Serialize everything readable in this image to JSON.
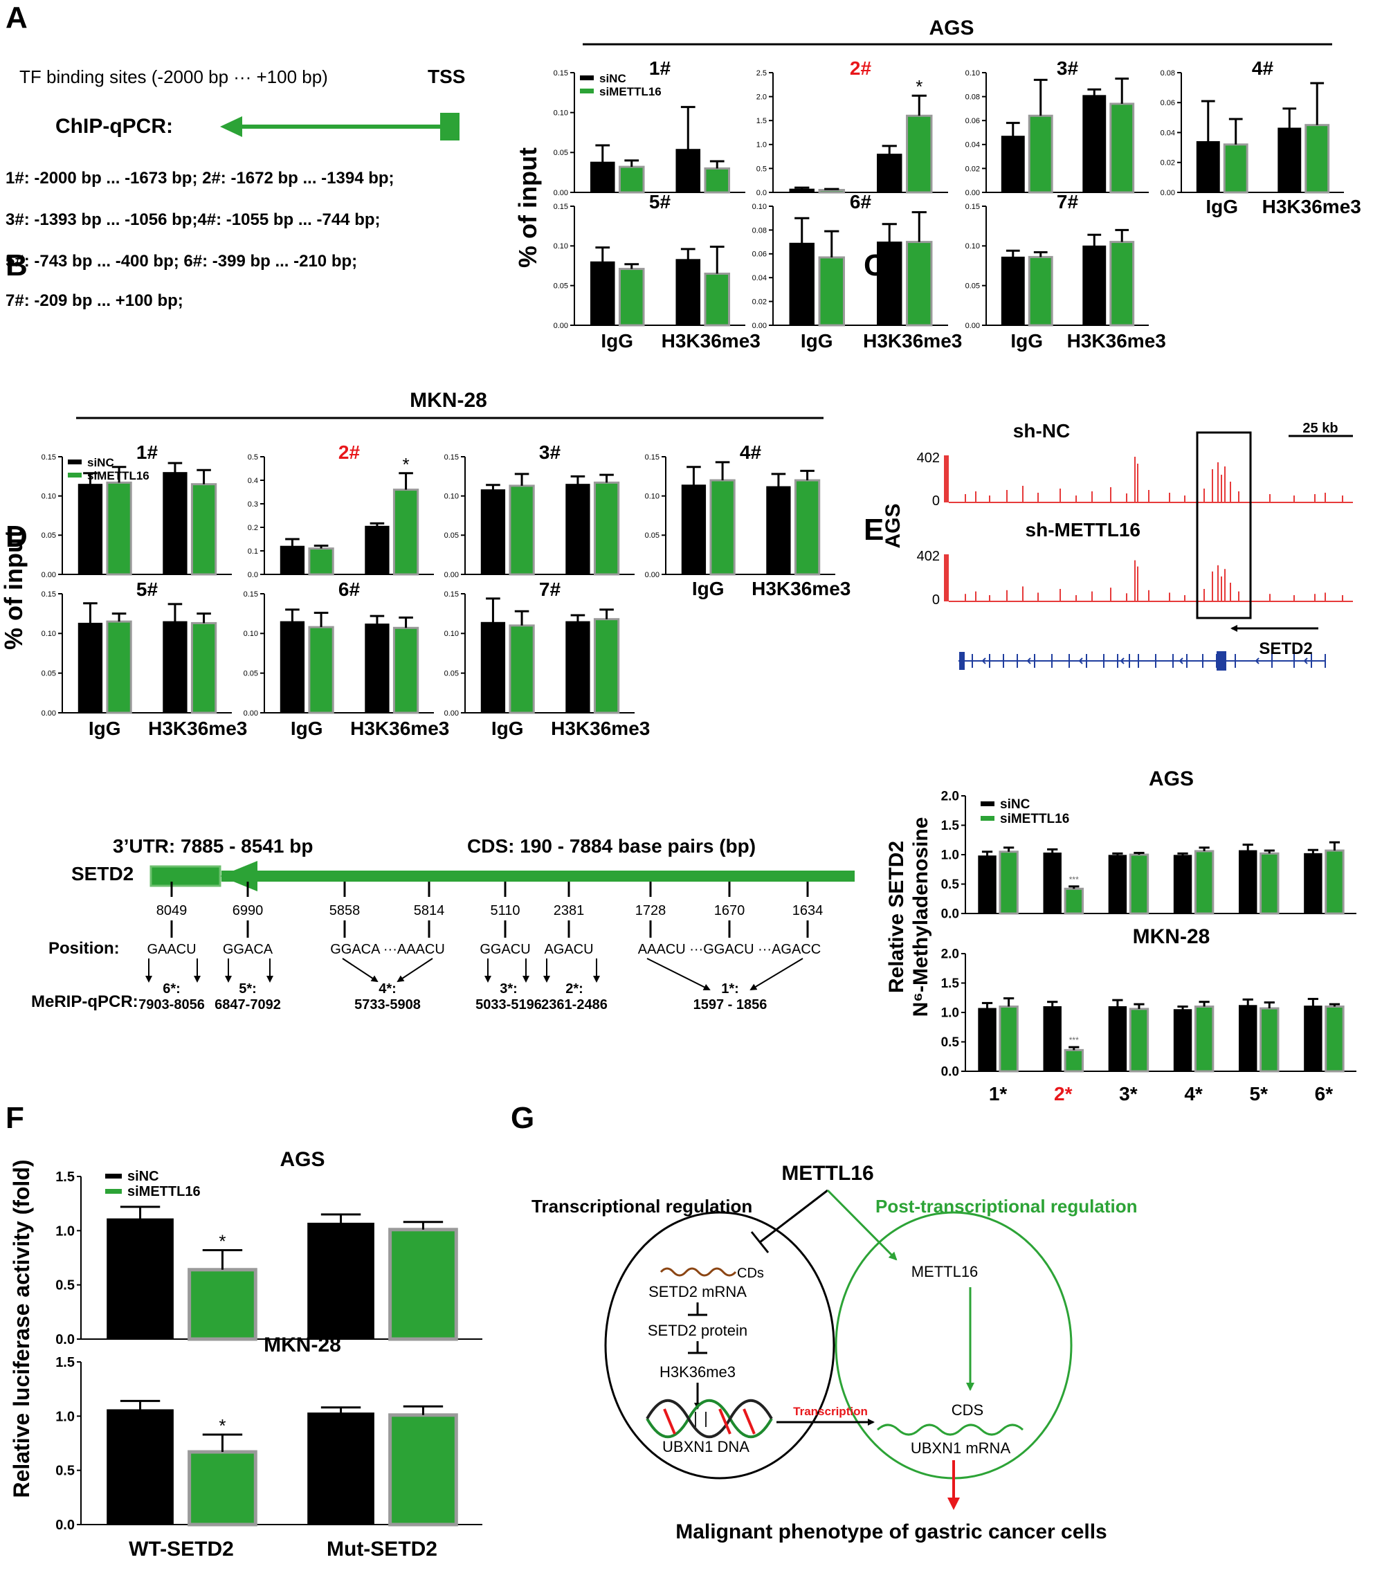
{
  "colors": {
    "black": "#000000",
    "green": "#2ca336",
    "green_border": "#9a9a9a",
    "red": "#e8171b",
    "blue": "#1f3d9e",
    "track_red": "#e63a3a"
  },
  "panel_letters": [
    "A",
    "B",
    "C",
    "D",
    "E",
    "F",
    "G"
  ],
  "legend": {
    "siNC": "siNC",
    "siMETTL16": "siMETTL16"
  },
  "common": {
    "percent_input": "% of input",
    "igg": "IgG",
    "h3k36me3": "H3K36me3"
  },
  "panelA": {
    "cell_line": "AGS",
    "tf_label": "TF binding sites (-2000 bp ··· +100 bp)",
    "tss": "TSS",
    "chip_label": "ChIP-qPCR:",
    "regions": [
      "1#: -2000 bp ... -1673 bp; 2#: -1672 bp ...  -1394 bp;",
      "3#: -1393 bp ...  -1056 bp;4#: -1055 bp ...  -744 bp;",
      "5#: -743 bp  ...  -400 bp;   6#:  -399 bp ...  -210 bp;",
      "7#: -209 bp  ...   +100 bp;"
    ]
  },
  "panelB": {
    "cell_line": "MKN-28"
  },
  "panelC": {
    "scale": "25 kb",
    "side_label": "AGS",
    "track1": "sh-NC",
    "track2": "sh-METTL16",
    "ymax": "402",
    "ymin": "0",
    "gene": "SETD2"
  },
  "panelD": {
    "utr": "3’UTR: 7885 - 8541 bp",
    "cds": "CDS: 190 - 7884 base pairs (bp)",
    "gene": "SETD2",
    "position_label": "Position:",
    "merip_label": "MeRIP-qPCR:",
    "positions": [
      "8049",
      "6990",
      "5858",
      "5814",
      "5110",
      "2381",
      "1728",
      "1670",
      "1634"
    ],
    "motifs": [
      "GAACU",
      "GGACA",
      "GGACA ···AAACU",
      "GGACU",
      "AGACU",
      "AAACU ···GGACU ···AGACC"
    ],
    "regions": [
      {
        "name": "6*:",
        "range": "7903-8056"
      },
      {
        "name": "5*:",
        "range": "6847-7092"
      },
      {
        "name": "4*:",
        "range": "5733-5908"
      },
      {
        "name": "3*:",
        "range": "5033-5196"
      },
      {
        "name": "2*:",
        "range": "2361-2486"
      },
      {
        "name": "1*:",
        "range": "1597 - 1856"
      }
    ]
  },
  "panelE": {
    "ylabel1": "Relative SETD2",
    "ylabel2": "N⁶-Methyladenosine"
  },
  "panelF": {
    "ylabel": "Relative luciferase activity (fold)"
  },
  "panelG": {
    "top": "METTL16",
    "left_title": "Transcriptional regulation",
    "right_title": "Post-transcriptional regulation",
    "cds_left": "CDs",
    "setd2_mrna": "SETD2 mRNA",
    "setd2_protein": "SETD2 protein",
    "h3k36me3": "H3K36me3",
    "ubxn1_dna": "UBXN1 DNA",
    "transcription": "Transcription",
    "mettl16_inner": "METTL16",
    "cds_right": "CDS",
    "ubxn1_mrna": "UBXN1 mRNA",
    "bottom": "Malignant phenotype of gastric cancer cells"
  },
  "chart_data": [
    {
      "type": "bar",
      "panel": "A",
      "title": "1#",
      "categories": [
        "IgG",
        "H3K36me3"
      ],
      "ylim": [
        0,
        0.15
      ],
      "yticks": [
        "0.00",
        "0.05",
        "0.10",
        "0.15"
      ],
      "series": [
        {
          "name": "siNC",
          "values": [
            0.038,
            0.054
          ],
          "errors": [
            0.021,
            0.053
          ]
        },
        {
          "name": "siMETTL16",
          "values": [
            0.032,
            0.03
          ],
          "errors": [
            0.008,
            0.009
          ]
        }
      ],
      "legend": "top-left"
    },
    {
      "type": "bar",
      "panel": "A",
      "title": "2#",
      "title_color": "red",
      "categories": [
        "IgG",
        "H3K36me3"
      ],
      "ylim": [
        0,
        2.5
      ],
      "yticks": [
        "0.0",
        "0.5",
        "1.0",
        "1.5",
        "2.0",
        "2.5"
      ],
      "series": [
        {
          "name": "siNC",
          "values": [
            0.07,
            0.8
          ],
          "errors": [
            0.03,
            0.17
          ]
        },
        {
          "name": "siMETTL16",
          "values": [
            0.05,
            1.6
          ],
          "errors": [
            0.02,
            0.42
          ]
        }
      ],
      "annotations": [
        {
          "category": "H3K36me3",
          "text": "*"
        }
      ]
    },
    {
      "type": "bar",
      "panel": "A",
      "title": "3#",
      "categories": [
        "IgG",
        "H3K36me3"
      ],
      "ylim": [
        0,
        0.1
      ],
      "yticks": [
        "0.00",
        "0.02",
        "0.04",
        "0.06",
        "0.08",
        "0.10"
      ],
      "series": [
        {
          "name": "siNC",
          "values": [
            0.047,
            0.081
          ],
          "errors": [
            0.011,
            0.005
          ]
        },
        {
          "name": "siMETTL16",
          "values": [
            0.064,
            0.074
          ],
          "errors": [
            0.03,
            0.021
          ]
        }
      ]
    },
    {
      "type": "bar",
      "panel": "A",
      "title": "4#",
      "categories": [
        "IgG",
        "H3K36me3"
      ],
      "ylim": [
        0,
        0.08
      ],
      "yticks": [
        "0.00",
        "0.02",
        "0.04",
        "0.06",
        "0.08"
      ],
      "series": [
        {
          "name": "siNC",
          "values": [
            0.034,
            0.043
          ],
          "errors": [
            0.027,
            0.013
          ]
        },
        {
          "name": "siMETTL16",
          "values": [
            0.032,
            0.045
          ],
          "errors": [
            0.017,
            0.028
          ]
        }
      ]
    },
    {
      "type": "bar",
      "panel": "A",
      "title": "5#",
      "categories": [
        "IgG",
        "H3K36me3"
      ],
      "ylim": [
        0,
        0.15
      ],
      "yticks": [
        "0.00",
        "0.05",
        "0.10",
        "0.15"
      ],
      "series": [
        {
          "name": "siNC",
          "values": [
            0.08,
            0.083
          ],
          "errors": [
            0.018,
            0.013
          ]
        },
        {
          "name": "siMETTL16",
          "values": [
            0.071,
            0.065
          ],
          "errors": [
            0.006,
            0.034
          ]
        }
      ]
    },
    {
      "type": "bar",
      "panel": "A",
      "title": "6#",
      "categories": [
        "IgG",
        "H3K36me3"
      ],
      "ylim": [
        0,
        0.1
      ],
      "yticks": [
        "0.00",
        "0.02",
        "0.04",
        "0.06",
        "0.08",
        "0.10"
      ],
      "series": [
        {
          "name": "siNC",
          "values": [
            0.069,
            0.07
          ],
          "errors": [
            0.021,
            0.015
          ]
        },
        {
          "name": "siMETTL16",
          "values": [
            0.057,
            0.07
          ],
          "errors": [
            0.022,
            0.025
          ]
        }
      ]
    },
    {
      "type": "bar",
      "panel": "A",
      "title": "7#",
      "categories": [
        "IgG",
        "H3K36me3"
      ],
      "ylim": [
        0,
        0.15
      ],
      "yticks": [
        "0.00",
        "0.05",
        "0.10",
        "0.15"
      ],
      "series": [
        {
          "name": "siNC",
          "values": [
            0.086,
            0.1
          ],
          "errors": [
            0.008,
            0.014
          ]
        },
        {
          "name": "siMETTL16",
          "values": [
            0.086,
            0.105
          ],
          "errors": [
            0.006,
            0.015
          ]
        }
      ]
    },
    {
      "type": "bar",
      "panel": "B",
      "title": "1#",
      "categories": [
        "IgG",
        "H3K36me3"
      ],
      "ylim": [
        0,
        0.15
      ],
      "yticks": [
        "0.00",
        "0.05",
        "0.10",
        "0.15"
      ],
      "series": [
        {
          "name": "siNC",
          "values": [
            0.115,
            0.13
          ],
          "errors": [
            0.014,
            0.012
          ]
        },
        {
          "name": "siMETTL16",
          "values": [
            0.117,
            0.115
          ],
          "errors": [
            0.02,
            0.018
          ]
        }
      ],
      "legend": "top-left"
    },
    {
      "type": "bar",
      "panel": "B",
      "title": "2#",
      "title_color": "red",
      "categories": [
        "IgG",
        "H3K36me3"
      ],
      "ylim": [
        0,
        0.5
      ],
      "yticks": [
        "0.0",
        "0.1",
        "0.2",
        "0.3",
        "0.4",
        "0.5"
      ],
      "series": [
        {
          "name": "siNC",
          "values": [
            0.12,
            0.205
          ],
          "errors": [
            0.03,
            0.012
          ]
        },
        {
          "name": "siMETTL16",
          "values": [
            0.11,
            0.36
          ],
          "errors": [
            0.012,
            0.07
          ]
        }
      ],
      "annotations": [
        {
          "category": "H3K36me3",
          "text": "*"
        }
      ]
    },
    {
      "type": "bar",
      "panel": "B",
      "title": "3#",
      "categories": [
        "IgG",
        "H3K36me3"
      ],
      "ylim": [
        0,
        0.15
      ],
      "yticks": [
        "0.00",
        "0.05",
        "0.10",
        "0.15"
      ],
      "series": [
        {
          "name": "siNC",
          "values": [
            0.108,
            0.115
          ],
          "errors": [
            0.006,
            0.01
          ]
        },
        {
          "name": "siMETTL16",
          "values": [
            0.113,
            0.117
          ],
          "errors": [
            0.015,
            0.01
          ]
        }
      ]
    },
    {
      "type": "bar",
      "panel": "B",
      "title": "4#",
      "categories": [
        "IgG",
        "H3K36me3"
      ],
      "ylim": [
        0,
        0.15
      ],
      "yticks": [
        "0.00",
        "0.05",
        "0.10",
        "0.15"
      ],
      "series": [
        {
          "name": "siNC",
          "values": [
            0.114,
            0.112
          ],
          "errors": [
            0.023,
            0.016
          ]
        },
        {
          "name": "siMETTL16",
          "values": [
            0.12,
            0.12
          ],
          "errors": [
            0.023,
            0.012
          ]
        }
      ]
    },
    {
      "type": "bar",
      "panel": "B",
      "title": "5#",
      "categories": [
        "IgG",
        "H3K36me3"
      ],
      "ylim": [
        0,
        0.15
      ],
      "yticks": [
        "0.00",
        "0.05",
        "0.10",
        "0.15"
      ],
      "series": [
        {
          "name": "siNC",
          "values": [
            0.113,
            0.115
          ],
          "errors": [
            0.025,
            0.022
          ]
        },
        {
          "name": "siMETTL16",
          "values": [
            0.115,
            0.113
          ],
          "errors": [
            0.01,
            0.012
          ]
        }
      ]
    },
    {
      "type": "bar",
      "panel": "B",
      "title": "6#",
      "categories": [
        "IgG",
        "H3K36me3"
      ],
      "ylim": [
        0,
        0.15
      ],
      "yticks": [
        "0.00",
        "0.05",
        "0.10",
        "0.15"
      ],
      "series": [
        {
          "name": "siNC",
          "values": [
            0.115,
            0.112
          ],
          "errors": [
            0.015,
            0.01
          ]
        },
        {
          "name": "siMETTL16",
          "values": [
            0.108,
            0.107
          ],
          "errors": [
            0.018,
            0.013
          ]
        }
      ]
    },
    {
      "type": "bar",
      "panel": "B",
      "title": "7#",
      "categories": [
        "IgG",
        "H3K36me3"
      ],
      "ylim": [
        0,
        0.15
      ],
      "yticks": [
        "0.00",
        "0.05",
        "0.10",
        "0.15"
      ],
      "series": [
        {
          "name": "siNC",
          "values": [
            0.114,
            0.115
          ],
          "errors": [
            0.03,
            0.008
          ]
        },
        {
          "name": "siMETTL16",
          "values": [
            0.11,
            0.118
          ],
          "errors": [
            0.018,
            0.012
          ]
        }
      ]
    },
    {
      "type": "bar",
      "panel": "E",
      "title": "AGS",
      "categories": [
        "1*",
        "2*",
        "3*",
        "4*",
        "5*",
        "6*"
      ],
      "ylim": [
        0,
        2.0
      ],
      "yticks": [
        "0.0",
        "0.5",
        "1.0",
        "1.5",
        "2.0"
      ],
      "series": [
        {
          "name": "siNC",
          "values": [
            0.98,
            1.03,
            0.99,
            0.99,
            1.07,
            1.02
          ],
          "errors": [
            0.07,
            0.06,
            0.03,
            0.03,
            0.1,
            0.06
          ]
        },
        {
          "name": "siMETTL16",
          "values": [
            1.05,
            0.42,
            1.0,
            1.06,
            1.02,
            1.07
          ],
          "errors": [
            0.07,
            0.04,
            0.03,
            0.06,
            0.05,
            0.14
          ]
        }
      ],
      "annotations": [
        {
          "category": "2*",
          "text": "***"
        }
      ],
      "legend": "top-left"
    },
    {
      "type": "bar",
      "panel": "E",
      "title": "MKN-28",
      "categories": [
        "1*",
        "2*",
        "3*",
        "4*",
        "5*",
        "6*"
      ],
      "ylim": [
        0,
        2.0
      ],
      "yticks": [
        "0.0",
        "0.5",
        "1.0",
        "1.5",
        "2.0"
      ],
      "tick_colors": [
        "black",
        "red",
        "black",
        "black",
        "black",
        "black"
      ],
      "series": [
        {
          "name": "siNC",
          "values": [
            1.07,
            1.1,
            1.1,
            1.05,
            1.12,
            1.11
          ],
          "errors": [
            0.09,
            0.08,
            0.11,
            0.05,
            0.1,
            0.12
          ]
        },
        {
          "name": "siMETTL16",
          "values": [
            1.1,
            0.36,
            1.06,
            1.1,
            1.07,
            1.1
          ],
          "errors": [
            0.14,
            0.05,
            0.08,
            0.08,
            0.1,
            0.04
          ]
        }
      ],
      "annotations": [
        {
          "category": "2*",
          "text": "***"
        }
      ]
    },
    {
      "type": "bar",
      "panel": "F",
      "title": "AGS",
      "categories": [
        "WT-SETD2",
        "Mut-SETD2"
      ],
      "ylim": [
        0,
        1.5
      ],
      "yticks": [
        "0.0",
        "0.5",
        "1.0",
        "1.5"
      ],
      "series": [
        {
          "name": "siNC",
          "values": [
            1.11,
            1.07
          ],
          "errors": [
            0.11,
            0.08
          ]
        },
        {
          "name": "siMETTL16",
          "values": [
            0.64,
            1.01
          ],
          "errors": [
            0.18,
            0.07
          ]
        }
      ],
      "annotations": [
        {
          "category": "WT-SETD2",
          "text": "*"
        }
      ],
      "legend": "top-left"
    },
    {
      "type": "bar",
      "panel": "F",
      "title": "MKN-28",
      "categories": [
        "WT-SETD2",
        "Mut-SETD2"
      ],
      "ylim": [
        0,
        1.5
      ],
      "yticks": [
        "0.0",
        "0.5",
        "1.0",
        "1.5"
      ],
      "series": [
        {
          "name": "siNC",
          "values": [
            1.06,
            1.03
          ],
          "errors": [
            0.08,
            0.05
          ]
        },
        {
          "name": "siMETTL16",
          "values": [
            0.67,
            1.01
          ],
          "errors": [
            0.16,
            0.08
          ]
        }
      ],
      "annotations": [
        {
          "category": "WT-SETD2",
          "text": "*"
        }
      ]
    }
  ]
}
